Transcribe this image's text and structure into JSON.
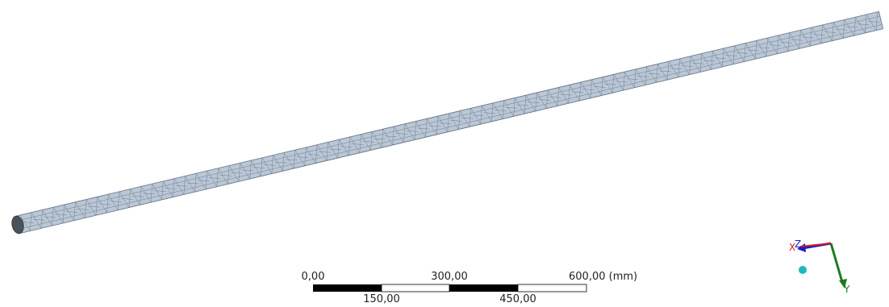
{
  "scale_bar": {
    "top_labels": [
      "0,00",
      "300,00",
      "600,00 (mm)"
    ],
    "bottom_labels": [
      "150,00",
      "450,00"
    ]
  },
  "triad": {
    "x": "X",
    "y": "Y",
    "z": "Z"
  }
}
